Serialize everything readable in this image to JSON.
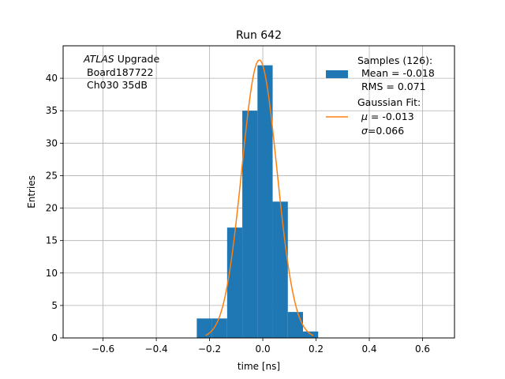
{
  "chart_data": {
    "type": "bar",
    "title": "Run 642",
    "xlabel": "time [ns]",
    "ylabel": "Entries",
    "xlim": [
      -0.75,
      0.72
    ],
    "ylim": [
      0,
      45
    ],
    "grid": true,
    "xticks": [
      -0.6,
      -0.4,
      -0.2,
      0.0,
      0.2,
      0.4,
      0.6
    ],
    "xtick_labels": [
      "−0.6",
      "−0.4",
      "−0.2",
      "0.0",
      "0.2",
      "0.4",
      "0.6"
    ],
    "yticks": [
      0,
      5,
      10,
      15,
      20,
      25,
      30,
      35,
      40
    ],
    "ytick_labels": [
      "0",
      "5",
      "10",
      "15",
      "20",
      "25",
      "30",
      "35",
      "40"
    ],
    "annotation": {
      "line1_italic": "ATLAS",
      "line1_rest": " Upgrade",
      "line2": "Board187722",
      "line3": "Ch030 35dB"
    },
    "histogram": {
      "name": "Samples (126):",
      "color": "#1f77b4",
      "bin_edges": [
        -0.248,
        -0.191,
        -0.134,
        -0.077,
        -0.02,
        0.037,
        0.094,
        0.151,
        0.208
      ],
      "counts": [
        3,
        3,
        17,
        35,
        42,
        21,
        4,
        1
      ]
    },
    "fit": {
      "name": "Gaussian Fit:",
      "color": "#ff7f0e",
      "mu": -0.013,
      "sigma": 0.066,
      "amplitude": 42.8,
      "x_range": [
        -0.215,
        0.19
      ]
    },
    "legend": {
      "position": "upper right",
      "samples_title": "Samples (126):",
      "samples_mean": "Mean = -0.018",
      "samples_rms": "RMS = 0.071",
      "fit_title": "Gaussian Fit:",
      "fit_mu_symbol": "μ",
      "fit_mu_value": " = -0.013",
      "fit_sigma_symbol": "σ",
      "fit_sigma_value": "=0.066"
    }
  }
}
